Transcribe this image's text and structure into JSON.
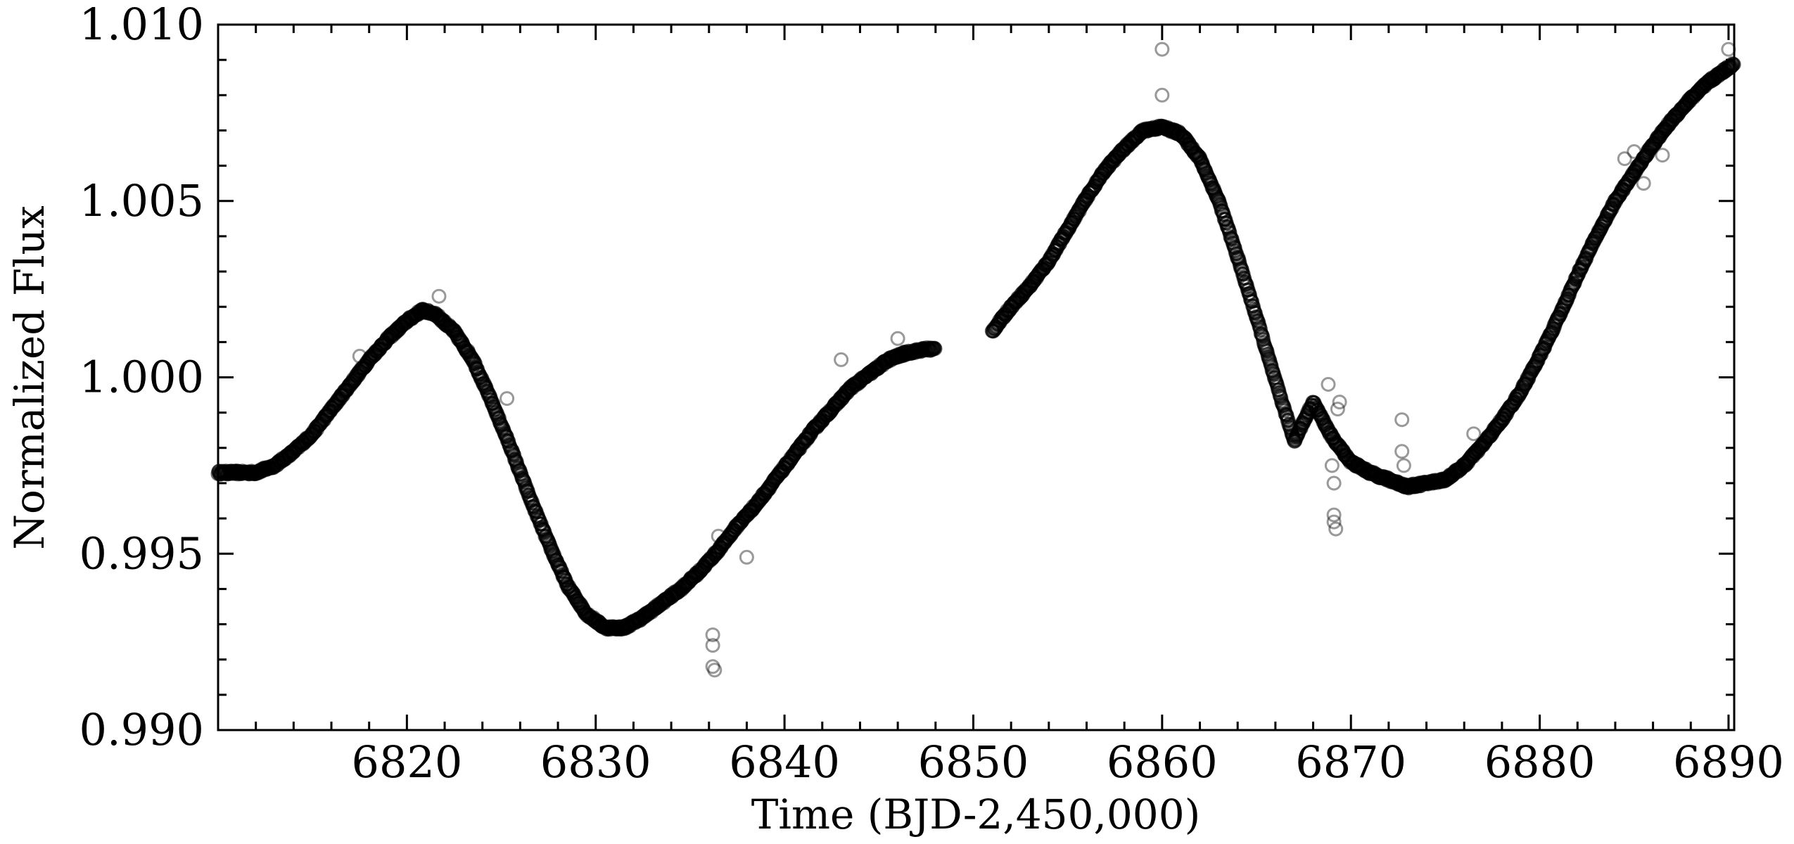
{
  "chart_data": {
    "type": "scatter",
    "title": "",
    "xlabel": "Time (BJD-2,450,000)",
    "ylabel": "Normalized Flux",
    "xlim": [
      6810,
      6890.3
    ],
    "ylim": [
      0.99,
      1.01
    ],
    "x_ticks": [
      6820,
      6830,
      6840,
      6850,
      6860,
      6870,
      6880,
      6890
    ],
    "x_tick_labels": [
      "6820",
      "6830",
      "6840",
      "6850",
      "6860",
      "6870",
      "6880",
      "6890"
    ],
    "y_ticks": [
      0.99,
      0.995,
      1.0,
      1.005,
      1.01
    ],
    "y_tick_labels": [
      "0.990",
      "0.995",
      "1.000",
      "1.005",
      "1.010"
    ],
    "grid": false,
    "marker": "open-circle",
    "marker_color": "#000000",
    "series": [
      {
        "segments": [
          {
            "x": [
              6810.0,
              6811.0,
              6812.0,
              6813.0,
              6814.0,
              6815.0,
              6816.0,
              6817.0,
              6818.0,
              6819.0,
              6820.0,
              6820.8,
              6821.5,
              6822.5,
              6823.5,
              6824.5,
              6825.5,
              6826.5,
              6827.5,
              6828.5,
              6829.5,
              6830.5,
              6831.5,
              6832.5,
              6833.5,
              6834.5,
              6835.5,
              6836.5,
              6837.5,
              6838.5,
              6839.5,
              6840.5,
              6841.5,
              6842.5,
              6843.5,
              6844.5,
              6845.5,
              6846.5,
              6847.5,
              6848.0
            ],
            "y": [
              0.9973,
              0.9973,
              0.9973,
              0.9975,
              0.9979,
              0.9984,
              0.9991,
              0.9998,
              1.0005,
              1.0011,
              1.0016,
              1.0019,
              1.0018,
              1.0013,
              1.0005,
              0.9993,
              0.998,
              0.9966,
              0.9953,
              0.9941,
              0.9933,
              0.9929,
              0.9929,
              0.9932,
              0.9936,
              0.994,
              0.9945,
              0.9951,
              0.9958,
              0.9964,
              0.9971,
              0.9978,
              0.9985,
              0.9991,
              0.9997,
              1.0001,
              1.0005,
              1.0007,
              1.0008,
              1.0008
            ]
          },
          {
            "x": [
              6851.0,
              6852.0,
              6853.0,
              6854.0,
              6855.0,
              6856.0,
              6857.0,
              6858.0,
              6859.0,
              6860.0,
              6861.0,
              6862.0,
              6863.0,
              6864.0,
              6865.0,
              6866.0,
              6867.0,
              6868.0,
              6869.0,
              6870.0,
              6871.0,
              6872.0,
              6873.0,
              6874.0,
              6875.0,
              6876.0,
              6877.0,
              6878.0,
              6879.0,
              6880.0,
              6881.0,
              6882.0,
              6883.0,
              6884.0,
              6885.0,
              6886.0,
              6887.0,
              6888.0,
              6889.0,
              6890.3
            ],
            "y": [
              1.0013,
              1.002,
              1.0026,
              1.0033,
              1.0042,
              1.0051,
              1.0059,
              1.0065,
              1.007,
              1.0071,
              1.0069,
              1.0062,
              1.005,
              1.0034,
              1.0017,
              0.9999,
              0.9982,
              0.9993,
              0.9983,
              0.9976,
              0.9973,
              0.9971,
              0.9969,
              0.997,
              0.9971,
              0.9975,
              0.9981,
              0.9988,
              0.9996,
              1.0006,
              1.0017,
              1.0029,
              1.004,
              1.005,
              1.0058,
              1.0066,
              1.0073,
              1.0079,
              1.0084,
              1.0089
            ]
          }
        ]
      }
    ],
    "outliers": {
      "x": [
        6817.5,
        6821.7,
        6825.3,
        6836.2,
        6836.2,
        6836.2,
        6836.3,
        6836.5,
        6838.0,
        6843.0,
        6846.0,
        6860.0,
        6860.0,
        6868.8,
        6869.0,
        6869.1,
        6869.1,
        6869.1,
        6869.2,
        6869.3,
        6869.4,
        6872.7,
        6872.7,
        6872.8,
        6876.5,
        6884.5,
        6885.0,
        6885.5,
        6886.0,
        6886.5,
        6890.0
      ],
      "y": [
        1.0006,
        1.0023,
        0.9994,
        0.9927,
        0.9924,
        0.9918,
        0.9917,
        0.9955,
        0.9949,
        1.0005,
        1.0011,
        1.0093,
        1.008,
        0.9998,
        0.9975,
        0.997,
        0.9961,
        0.9959,
        0.9957,
        0.9991,
        0.9993,
        0.9988,
        0.9979,
        0.9975,
        0.9984,
        1.0062,
        1.0064,
        1.0055,
        1.0066,
        1.0063,
        1.0093
      ]
    }
  }
}
